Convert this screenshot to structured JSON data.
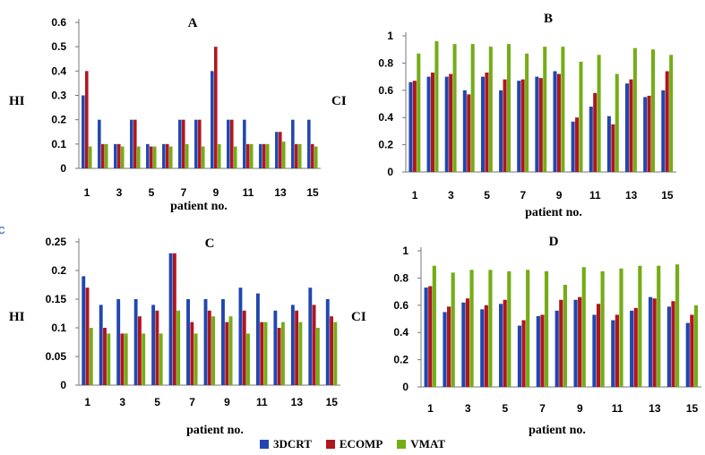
{
  "colors": {
    "3DCRT": "#2146b0",
    "ECOMP": "#b0161e",
    "VMAT": "#74ad16",
    "axis": "#777777"
  },
  "stray_text": "c",
  "legend": [
    {
      "name": "3DCRT",
      "color": "#2146b0"
    },
    {
      "name": "ECOMP",
      "color": "#b0161e"
    },
    {
      "name": "VMAT",
      "color": "#74ad16"
    }
  ],
  "chart_data": [
    {
      "panel": "A",
      "type": "bar",
      "title": "A",
      "xlabel": "patient no.",
      "ylabel": "HI",
      "categories": [
        1,
        2,
        3,
        4,
        5,
        6,
        7,
        8,
        9,
        10,
        11,
        12,
        13,
        14,
        15
      ],
      "x_tick_labels": [
        "1",
        "3",
        "5",
        "7",
        "9",
        "11",
        "13",
        "15"
      ],
      "ylim": [
        0,
        0.6
      ],
      "y_ticks": [
        "0",
        "0.1",
        "0.2",
        "0.3",
        "0.4",
        "0.5",
        "0.6"
      ],
      "series": [
        {
          "name": "3DCRT",
          "values": [
            0.3,
            0.2,
            0.1,
            0.2,
            0.1,
            0.1,
            0.2,
            0.2,
            0.4,
            0.2,
            0.2,
            0.1,
            0.15,
            0.2,
            0.2
          ]
        },
        {
          "name": "ECOMP",
          "values": [
            0.4,
            0.1,
            0.1,
            0.2,
            0.09,
            0.1,
            0.2,
            0.2,
            0.5,
            0.2,
            0.1,
            0.1,
            0.15,
            0.1,
            0.1
          ]
        },
        {
          "name": "VMAT",
          "values": [
            0.09,
            0.1,
            0.09,
            0.09,
            0.09,
            0.09,
            0.1,
            0.09,
            0.1,
            0.09,
            0.1,
            0.1,
            0.11,
            0.1,
            0.09
          ]
        }
      ]
    },
    {
      "panel": "B",
      "type": "bar",
      "title": "B",
      "xlabel": "patient no.",
      "ylabel": "CI",
      "categories": [
        1,
        2,
        3,
        4,
        5,
        6,
        7,
        8,
        9,
        10,
        11,
        12,
        13,
        14,
        15
      ],
      "x_tick_labels": [
        "1",
        "3",
        "5",
        "7",
        "9",
        "11",
        "13",
        "15"
      ],
      "ylim": [
        0,
        1
      ],
      "y_ticks": [
        "0",
        "0.2",
        "0.4",
        "0.6",
        "0.8",
        "1"
      ],
      "series": [
        {
          "name": "3DCRT",
          "values": [
            0.66,
            0.7,
            0.7,
            0.6,
            0.7,
            0.6,
            0.67,
            0.7,
            0.74,
            0.37,
            0.48,
            0.41,
            0.65,
            0.55,
            0.6
          ]
        },
        {
          "name": "ECOMP",
          "values": [
            0.67,
            0.73,
            0.72,
            0.57,
            0.73,
            0.68,
            0.68,
            0.69,
            0.72,
            0.4,
            0.58,
            0.35,
            0.68,
            0.56,
            0.74
          ]
        },
        {
          "name": "VMAT",
          "values": [
            0.87,
            0.96,
            0.94,
            0.94,
            0.92,
            0.94,
            0.87,
            0.92,
            0.92,
            0.81,
            0.86,
            0.72,
            0.91,
            0.9,
            0.86
          ]
        }
      ]
    },
    {
      "panel": "C",
      "type": "bar",
      "title": "C",
      "xlabel": "patient no.",
      "ylabel": "HI",
      "categories": [
        1,
        2,
        3,
        4,
        5,
        6,
        7,
        8,
        9,
        10,
        11,
        12,
        13,
        14,
        15
      ],
      "x_tick_labels": [
        "1",
        "3",
        "5",
        "7",
        "9",
        "11",
        "13",
        "15"
      ],
      "ylim": [
        0,
        0.25
      ],
      "y_ticks": [
        "0",
        "0.05",
        "0.1",
        "0.15",
        "0.2",
        "0.25"
      ],
      "series": [
        {
          "name": "3DCRT",
          "values": [
            0.19,
            0.14,
            0.15,
            0.15,
            0.14,
            0.23,
            0.15,
            0.15,
            0.15,
            0.17,
            0.16,
            0.13,
            0.14,
            0.17,
            0.15
          ]
        },
        {
          "name": "ECOMP",
          "values": [
            0.17,
            0.1,
            0.09,
            0.12,
            0.13,
            0.23,
            0.11,
            0.13,
            0.11,
            0.13,
            0.11,
            0.1,
            0.13,
            0.14,
            0.12
          ]
        },
        {
          "name": "VMAT",
          "values": [
            0.1,
            0.09,
            0.09,
            0.09,
            0.09,
            0.13,
            0.09,
            0.12,
            0.12,
            0.09,
            0.11,
            0.11,
            0.11,
            0.1,
            0.11
          ]
        }
      ]
    },
    {
      "panel": "D",
      "type": "bar",
      "title": "D",
      "xlabel": "patient no.",
      "ylabel": "CI",
      "categories": [
        1,
        2,
        3,
        4,
        5,
        6,
        7,
        8,
        9,
        10,
        11,
        12,
        13,
        14,
        15
      ],
      "x_tick_labels": [
        "1",
        "3",
        "5",
        "7",
        "9",
        "11",
        "13",
        "15"
      ],
      "ylim": [
        0,
        1
      ],
      "y_ticks": [
        "0",
        "0.2",
        "0.4",
        "0.6",
        "0.8",
        "1"
      ],
      "series": [
        {
          "name": "3DCRT",
          "values": [
            0.73,
            0.55,
            0.62,
            0.57,
            0.61,
            0.45,
            0.52,
            0.56,
            0.64,
            0.53,
            0.49,
            0.56,
            0.66,
            0.59,
            0.47
          ]
        },
        {
          "name": "ECOMP",
          "values": [
            0.74,
            0.59,
            0.65,
            0.6,
            0.64,
            0.49,
            0.53,
            0.64,
            0.66,
            0.61,
            0.53,
            0.58,
            0.65,
            0.63,
            0.53
          ]
        },
        {
          "name": "VMAT",
          "values": [
            0.89,
            0.84,
            0.86,
            0.86,
            0.85,
            0.86,
            0.85,
            0.75,
            0.88,
            0.85,
            0.87,
            0.89,
            0.89,
            0.9,
            0.6
          ]
        }
      ]
    }
  ]
}
